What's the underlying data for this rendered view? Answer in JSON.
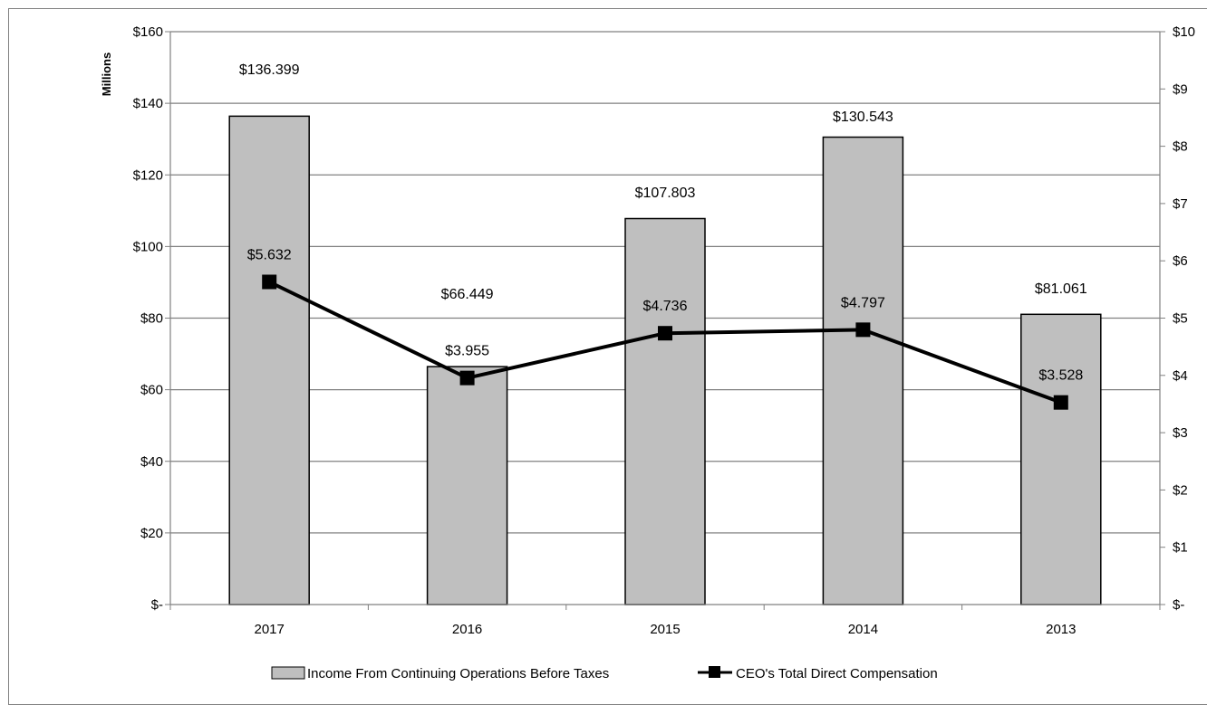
{
  "chart_data": {
    "type": "bar",
    "categories": [
      "2017",
      "2016",
      "2015",
      "2014",
      "2013"
    ],
    "series": [
      {
        "name": "Income From Continuing Operations Before Taxes",
        "type": "bar",
        "axis": "left",
        "values": [
          136.399,
          66.449,
          107.803,
          130.543,
          81.061
        ],
        "labels": [
          "$136.399",
          "$66.449",
          "$107.803",
          "$130.543",
          "$81.061"
        ],
        "color": "#bfbfbf"
      },
      {
        "name": "CEO's Total Direct Compensation",
        "type": "line",
        "axis": "right",
        "values": [
          5.632,
          3.955,
          4.736,
          4.797,
          3.528
        ],
        "labels": [
          "$5.632",
          "$3.955",
          "$4.736",
          "$4.797",
          "$3.528"
        ],
        "color": "#000000"
      }
    ],
    "ylabel": "Millions",
    "ylim": [
      0,
      160
    ],
    "y2lim": [
      0,
      10
    ],
    "yticks": [
      "$-",
      "$20",
      "$40",
      "$60",
      "$80",
      "$100",
      "$120",
      "$140",
      "$160"
    ],
    "y2ticks": [
      "$-",
      "$1",
      "$2",
      "$3",
      "$4",
      "$5",
      "$6",
      "$7",
      "$8",
      "$9",
      "$10"
    ],
    "grid": true,
    "legend": "bottom"
  }
}
